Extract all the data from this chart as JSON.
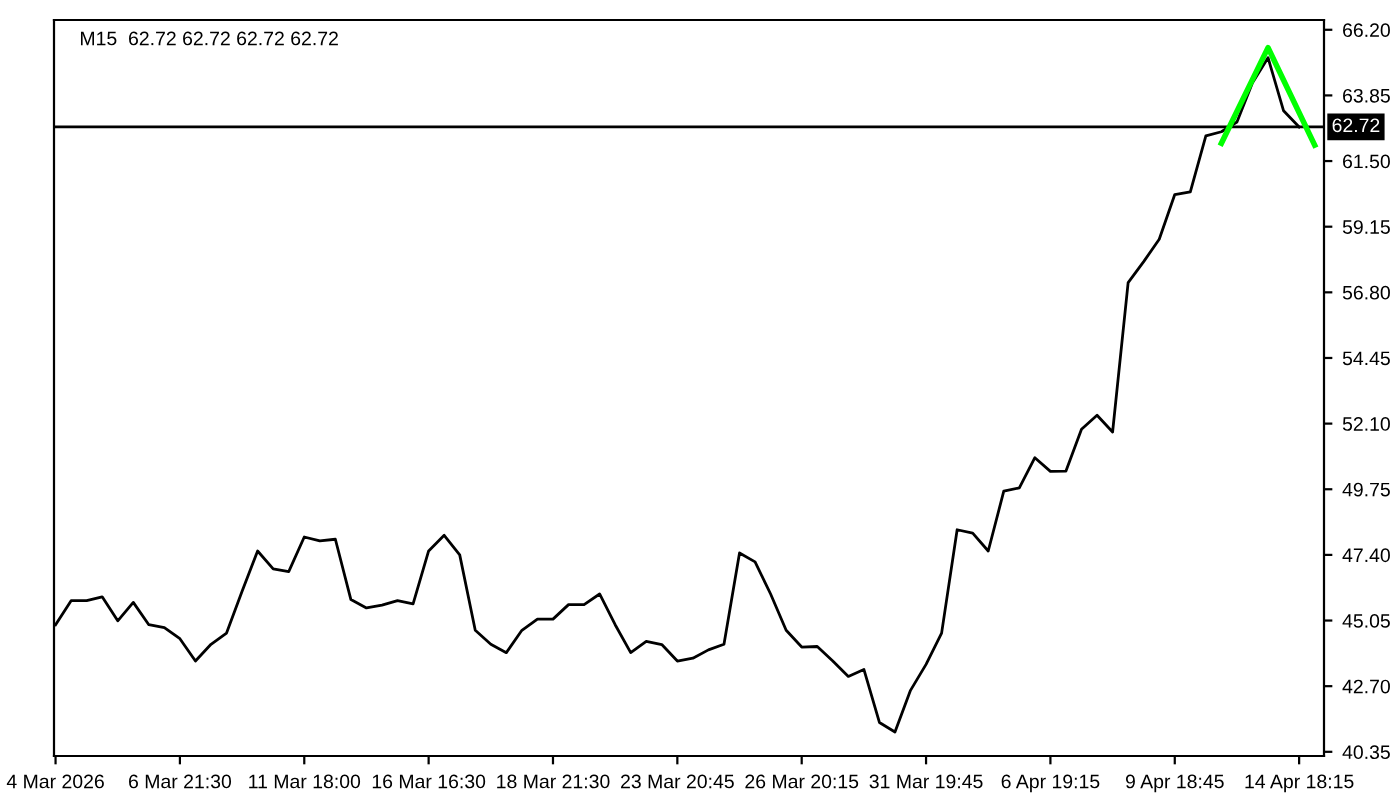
{
  "chart_data": {
    "type": "line",
    "title": "M15  62.72 62.72 62.72 62.72",
    "categories": [
      "4 Mar 2026",
      null,
      null,
      null,
      null,
      null,
      null,
      null,
      "6 Mar 21:30",
      null,
      null,
      null,
      null,
      null,
      null,
      null,
      "11 Mar 18:00",
      null,
      null,
      null,
      null,
      null,
      null,
      null,
      "16 Mar 16:30",
      null,
      null,
      null,
      null,
      null,
      null,
      null,
      "18 Mar 21:30",
      null,
      null,
      null,
      null,
      null,
      null,
      null,
      "23 Mar 20:45",
      null,
      null,
      null,
      null,
      null,
      null,
      null,
      "26 Mar 20:15",
      null,
      null,
      null,
      null,
      null,
      null,
      null,
      "31 Mar 19:45",
      null,
      null,
      null,
      null,
      null,
      null,
      null,
      "6 Apr 19:15",
      null,
      null,
      null,
      null,
      null,
      null,
      null,
      "9 Apr 18:45",
      null,
      null,
      null,
      null,
      null,
      null,
      null,
      "14 Apr 18:15",
      null
    ],
    "series": [
      {
        "color": "#000000",
        "values": [
          44.9,
          45.76,
          45.76,
          45.9,
          45.04,
          45.7,
          44.9,
          44.8,
          44.4,
          43.6,
          44.2,
          44.6,
          46.1,
          47.54,
          46.9,
          46.8,
          48.04,
          47.9,
          47.96,
          45.8,
          45.5,
          45.6,
          45.76,
          45.65,
          47.54,
          48.1,
          47.4,
          44.7,
          44.2,
          43.9,
          44.7,
          45.1,
          45.1,
          45.62,
          45.62,
          46.0,
          44.9,
          43.9,
          44.3,
          44.19,
          43.6,
          43.7,
          44.0,
          44.2,
          47.47,
          47.15,
          46.0,
          44.7,
          44.1,
          44.12,
          43.6,
          43.05,
          43.3,
          41.4,
          41.06,
          42.55,
          43.48,
          44.6,
          48.3,
          48.18,
          47.54,
          49.68,
          49.8,
          50.88,
          50.39,
          50.4,
          51.9,
          52.4,
          51.8,
          57.15,
          57.9,
          58.7,
          60.3,
          60.4,
          62.4,
          62.55,
          62.9,
          64.3,
          65.2,
          63.3,
          62.72,
          null
        ]
      },
      {
        "color": "#00ff00",
        "values": [
          null,
          null,
          null,
          null,
          null,
          null,
          null,
          null,
          null,
          null,
          null,
          null,
          null,
          null,
          null,
          null,
          null,
          null,
          null,
          null,
          null,
          null,
          null,
          null,
          null,
          null,
          null,
          null,
          null,
          null,
          null,
          null,
          null,
          null,
          null,
          null,
          null,
          null,
          null,
          null,
          null,
          null,
          null,
          null,
          null,
          null,
          null,
          null,
          null,
          null,
          null,
          null,
          null,
          null,
          null,
          null,
          null,
          null,
          null,
          null,
          null,
          null,
          null,
          null,
          null,
          null,
          null,
          null,
          null,
          null,
          null,
          null,
          null,
          null,
          null,
          62.14,
          null,
          null,
          65.56,
          null,
          null,
          62.07
        ]
      }
    ],
    "ylim": [
      40.2,
      66.55
    ],
    "yticks": [
      {
        "value": 40.35,
        "label": "40.35"
      },
      {
        "value": 42.7,
        "label": "42.70"
      },
      {
        "value": 45.05,
        "label": "45.05"
      },
      {
        "value": 47.4,
        "label": "47.40"
      },
      {
        "value": 49.75,
        "label": "49.75"
      },
      {
        "value": 52.1,
        "label": "52.10"
      },
      {
        "value": 54.45,
        "label": "54.45"
      },
      {
        "value": 56.8,
        "label": "56.80"
      },
      {
        "value": 59.15,
        "label": "59.15"
      },
      {
        "value": 61.5,
        "label": "61.50"
      },
      {
        "value": 63.85,
        "label": "63.85"
      },
      {
        "value": 66.2,
        "label": "66.20"
      }
    ],
    "ref_lines": [
      {
        "axis": "y",
        "value": 62.72,
        "label": "62.72",
        "color": "#000000"
      }
    ],
    "grid": false
  }
}
